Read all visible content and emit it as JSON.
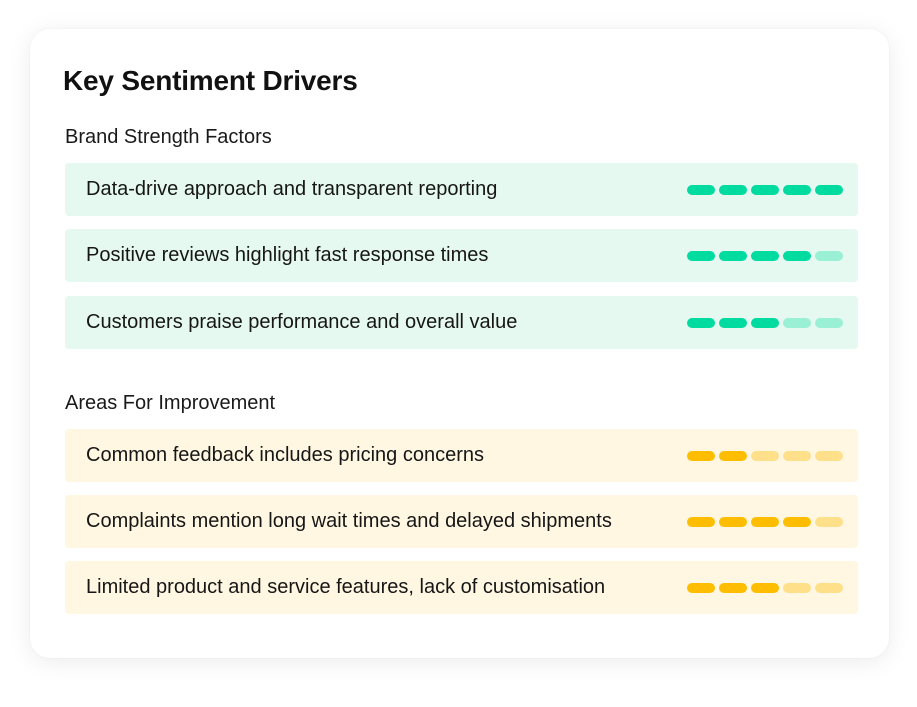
{
  "card": {
    "title": "Key Sentiment Drivers"
  },
  "colors": {
    "strength_bg": "#e6f9f1",
    "strength_on": "#00dba0",
    "strength_off": "#9af0d5",
    "improve_bg": "#fff7e2",
    "improve_on": "#ffbd00",
    "improve_off": "#ffe08a"
  },
  "sections": [
    {
      "key": "strength",
      "label": "Brand Strength Factors",
      "items": [
        {
          "text": "Data-drive approach and transparent reporting",
          "rating": 5,
          "max": 5
        },
        {
          "text": "Positive reviews highlight fast response times",
          "rating": 4,
          "max": 5
        },
        {
          "text": "Customers praise performance and overall value",
          "rating": 3,
          "max": 5
        }
      ]
    },
    {
      "key": "improve",
      "label": "Areas For Improvement",
      "items": [
        {
          "text": "Common feedback includes pricing concerns",
          "rating": 2,
          "max": 5
        },
        {
          "text": "Complaints mention long wait times and delayed shipments",
          "rating": 4,
          "max": 5
        },
        {
          "text": "Limited product and service features, lack of customisation",
          "rating": 3,
          "max": 5
        }
      ]
    }
  ]
}
